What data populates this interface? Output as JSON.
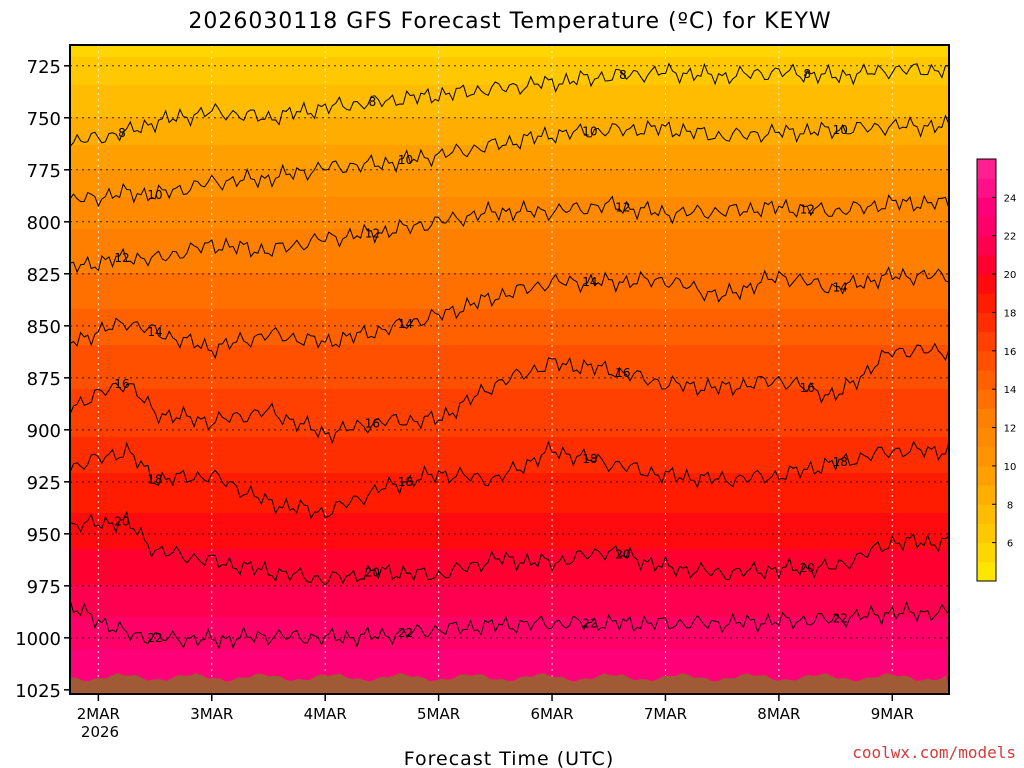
{
  "chart_data": {
    "type": "heatmap",
    "title": "2026030118 GFS Forecast Temperature (ºC) for KEYW",
    "xlabel": "Forecast Time (UTC)",
    "ylabel": "",
    "credit": "coolwx.com/models",
    "y_axis": {
      "ticks": [
        725,
        750,
        775,
        800,
        825,
        850,
        875,
        900,
        925,
        950,
        975,
        1000,
        1025
      ],
      "tick_labels": [
        "725",
        "750",
        "775",
        "800",
        "825",
        "850",
        "875",
        "900",
        "925",
        "950",
        "975",
        "1000",
        "1025"
      ],
      "range": [
        1027,
        715
      ],
      "reversed": true
    },
    "x_axis": {
      "ticks": [
        0,
        24,
        48,
        72,
        96,
        120,
        144,
        168
      ],
      "tick_labels": [
        "2MAR",
        "3MAR",
        "4MAR",
        "5MAR",
        "6MAR",
        "7MAR",
        "8MAR",
        "9MAR"
      ],
      "year_label": "2026",
      "range": [
        -6,
        180
      ]
    },
    "grid": true,
    "colorbar": {
      "levels": [
        4,
        5,
        6,
        7,
        8,
        9,
        10,
        11,
        12,
        13,
        14,
        15,
        16,
        17,
        18,
        19,
        20,
        21,
        22,
        23,
        24,
        25,
        26
      ],
      "tick_labels": [
        "6",
        "8",
        "10",
        "12",
        "14",
        "16",
        "18",
        "20",
        "22",
        "24"
      ],
      "colors": [
        "#ffe600",
        "#ffd600",
        "#ffc800",
        "#ffbc00",
        "#ffae00",
        "#ffa000",
        "#ff9400",
        "#ff8a00",
        "#ff7f00",
        "#ff7000",
        "#ff6000",
        "#ff5000",
        "#ff4000",
        "#ff2e00",
        "#ff1c00",
        "#ff0a0f",
        "#ff0030",
        "#ff0050",
        "#ff0068",
        "#ff0078",
        "#ff1088",
        "#ff2090"
      ]
    },
    "temperature_profile": {
      "levels_hpa": [
        715,
        725,
        750,
        775,
        800,
        825,
        850,
        875,
        900,
        925,
        950,
        975,
        1000,
        1020
      ],
      "temps_c": [
        5.5,
        6.5,
        8.0,
        10.0,
        11.8,
        13.0,
        14.5,
        15.8,
        16.8,
        18.2,
        19.6,
        21.0,
        22.6,
        24.0
      ]
    },
    "contours": [
      {
        "value": 8,
        "label": "8",
        "x": [
          -6,
          6,
          12,
          24,
          36,
          48,
          60,
          72,
          84,
          96,
          108,
          120,
          132,
          144,
          156,
          168,
          180
        ],
        "y": [
          762,
          757,
          752,
          747,
          750,
          745,
          742,
          739,
          736,
          733,
          730,
          728,
          730,
          728,
          730,
          727,
          727
        ]
      },
      {
        "value": 10,
        "label": "10",
        "x": [
          -6,
          6,
          12,
          24,
          36,
          48,
          60,
          72,
          84,
          96,
          108,
          120,
          132,
          144,
          156,
          168,
          180
        ],
        "y": [
          790,
          786,
          787,
          781,
          779,
          774,
          772,
          768,
          763,
          758,
          756,
          755,
          759,
          757,
          756,
          754,
          754
        ]
      },
      {
        "value": 12,
        "label": "12",
        "x": [
          -6,
          6,
          12,
          24,
          36,
          48,
          60,
          72,
          84,
          96,
          108,
          120,
          132,
          144,
          156,
          168,
          180
        ],
        "y": [
          822,
          817,
          818,
          811,
          814,
          808,
          805,
          800,
          795,
          795,
          792,
          796,
          795,
          793,
          795,
          791,
          791
        ]
      },
      {
        "value": 14,
        "label": "14",
        "x": [
          -6,
          6,
          12,
          24,
          36,
          48,
          60,
          72,
          84,
          96,
          108,
          120,
          132,
          144,
          156,
          168,
          180
        ],
        "y": [
          858,
          848,
          853,
          861,
          854,
          858,
          852,
          845,
          836,
          829,
          829,
          828,
          836,
          826,
          832,
          826,
          826
        ]
      },
      {
        "value": 16,
        "label": "16",
        "x": [
          -6,
          6,
          12,
          24,
          36,
          48,
          60,
          72,
          84,
          96,
          108,
          120,
          132,
          144,
          156,
          168,
          180
        ],
        "y": [
          889,
          877,
          892,
          896,
          891,
          902,
          896,
          895,
          878,
          868,
          871,
          878,
          880,
          876,
          884,
          862,
          862
        ]
      },
      {
        "value": 18,
        "label": "18",
        "x": [
          -6,
          6,
          12,
          24,
          36,
          48,
          60,
          72,
          84,
          96,
          108,
          120,
          132,
          144,
          156,
          168,
          180
        ],
        "y": [
          918,
          910,
          924,
          922,
          935,
          940,
          928,
          921,
          924,
          910,
          916,
          922,
          924,
          922,
          916,
          910,
          910
        ]
      },
      {
        "value": 20,
        "label": "20",
        "x": [
          -6,
          6,
          12,
          24,
          36,
          48,
          60,
          72,
          84,
          96,
          108,
          120,
          132,
          144,
          156,
          168,
          180
        ],
        "y": [
          946,
          944,
          958,
          963,
          968,
          972,
          968,
          970,
          962,
          964,
          958,
          966,
          969,
          967,
          966,
          954,
          954
        ]
      },
      {
        "value": 22,
        "label": "22",
        "x": [
          -6,
          6,
          12,
          24,
          36,
          48,
          60,
          72,
          84,
          96,
          108,
          120,
          132,
          144,
          156,
          168,
          180
        ],
        "y": [
          985,
          998,
          1000,
          1001,
          999,
          1000,
          999,
          996,
          994,
          993,
          993,
          993,
          993,
          992,
          991,
          988,
          988
        ]
      }
    ],
    "surface_terrain_hpa": 1019
  }
}
